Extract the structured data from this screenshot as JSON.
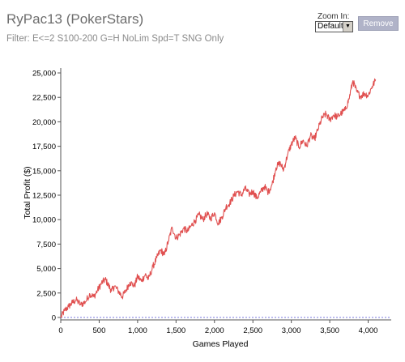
{
  "header": {
    "title": "RyPac13 (PokerStars)",
    "filter": "Filter: E<=2 S100-200 G=H NoLim Spd=T SNG Only"
  },
  "controls": {
    "zoom_label": "Zoom In:",
    "zoom_value": "Default",
    "remove_label": "Remove"
  },
  "colors": {
    "series": "#e05050",
    "zero_line": "#7777dd",
    "axis": "#555555"
  },
  "chart_data": {
    "type": "line",
    "xlabel": "Games Played",
    "ylabel": "Total Profit ($)",
    "xlim": [
      0,
      4300
    ],
    "ylim": [
      -250,
      25500
    ],
    "xticks": [
      0,
      500,
      1000,
      1500,
      2000,
      2500,
      3000,
      3500,
      4000
    ],
    "xtick_labels": [
      "0",
      "500",
      "1,000",
      "1,500",
      "2,000",
      "2,500",
      "3,000",
      "3,500",
      "4,000"
    ],
    "yticks": [
      0,
      2500,
      5000,
      7500,
      10000,
      12500,
      15000,
      17500,
      20000,
      22500,
      25000
    ],
    "ytick_labels": [
      "0",
      "2,500",
      "5,000",
      "7,500",
      "10,000",
      "12,500",
      "15,000",
      "17,500",
      "20,000",
      "22,500",
      "25,000"
    ],
    "grid": false,
    "series": [
      {
        "x": [
          0,
          50,
          100,
          150,
          200,
          260,
          320,
          380,
          430,
          480,
          530,
          580,
          620,
          660,
          700,
          760,
          800,
          850,
          900,
          960,
          1000,
          1050,
          1100,
          1140,
          1200,
          1250,
          1300,
          1350,
          1400,
          1450,
          1500,
          1550,
          1600,
          1650,
          1700,
          1750,
          1800,
          1850,
          1900,
          1950,
          2000,
          2050,
          2100,
          2150,
          2200,
          2250,
          2300,
          2350,
          2400,
          2450,
          2500,
          2550,
          2600,
          2650,
          2700,
          2750,
          2800,
          2850,
          2900,
          2950,
          3000,
          3050,
          3100,
          3150,
          3200,
          3250,
          3300,
          3350,
          3400,
          3450,
          3500,
          3550,
          3600,
          3650,
          3700,
          3750,
          3800,
          3850,
          3900,
          3950,
          4000,
          4050,
          4100
        ],
        "y": [
          0,
          700,
          1100,
          1500,
          1800,
          1300,
          1600,
          2400,
          2100,
          2800,
          3500,
          3900,
          3300,
          2700,
          3200,
          2600,
          2100,
          2800,
          3600,
          3200,
          4200,
          3700,
          4400,
          3900,
          5200,
          6100,
          6900,
          6400,
          7800,
          9200,
          8100,
          8500,
          9100,
          8800,
          9400,
          9900,
          10500,
          10000,
          10600,
          10100,
          10700,
          9600,
          10300,
          11300,
          11700,
          12400,
          12900,
          12500,
          13200,
          12600,
          12900,
          12200,
          12800,
          13400,
          12800,
          13600,
          15300,
          15800,
          15100,
          16600,
          17700,
          18400,
          17400,
          18100,
          17500,
          18600,
          18200,
          19300,
          20400,
          20800,
          20200,
          20700,
          20500,
          20900,
          21200,
          22300,
          24200,
          23100,
          22600,
          22900,
          22700,
          23600,
          24300
        ]
      }
    ]
  }
}
